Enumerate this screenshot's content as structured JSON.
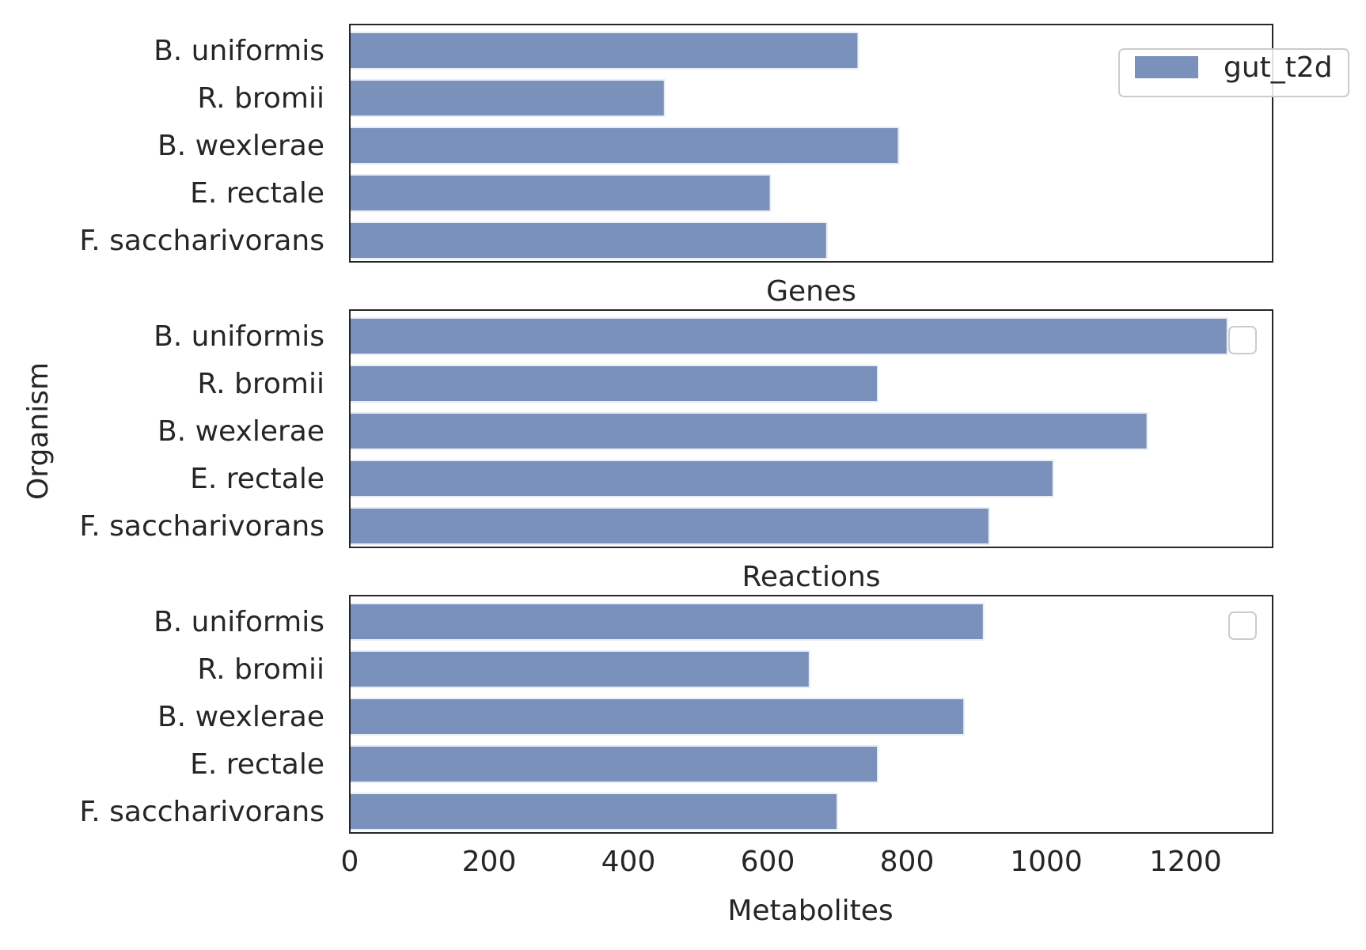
{
  "chart_data": {
    "type": "bar",
    "orientation": "horizontal",
    "categories": [
      "B. uniformis",
      "R. bromii",
      "B. wexlerae",
      "E. rectale",
      "F. saccharivorans"
    ],
    "xlabel": "Metabolites",
    "ylabel": "Organism",
    "xlim": [
      0,
      1325
    ],
    "xticks": [
      0,
      200,
      400,
      600,
      800,
      1000,
      1200
    ],
    "bar_color": "#7a91bb",
    "panels": [
      {
        "title": "",
        "series": [
          {
            "name": "gut_t2d",
            "values": [
              730,
              452,
              788,
              604,
              685
            ]
          }
        ],
        "legend": "upper-right, outside edge",
        "show_xticks": false
      },
      {
        "title": "Genes",
        "series": [
          {
            "name": "",
            "values": [
              1260,
              758,
              1145,
              1010,
              918
            ]
          }
        ],
        "legend": "empty box, upper-right",
        "show_xticks": false
      },
      {
        "title": "Reactions",
        "series": [
          {
            "name": "",
            "values": [
              910,
              660,
              882,
              758,
              700
            ]
          }
        ],
        "legend": "empty box, upper-right",
        "show_xticks": true
      }
    ]
  }
}
